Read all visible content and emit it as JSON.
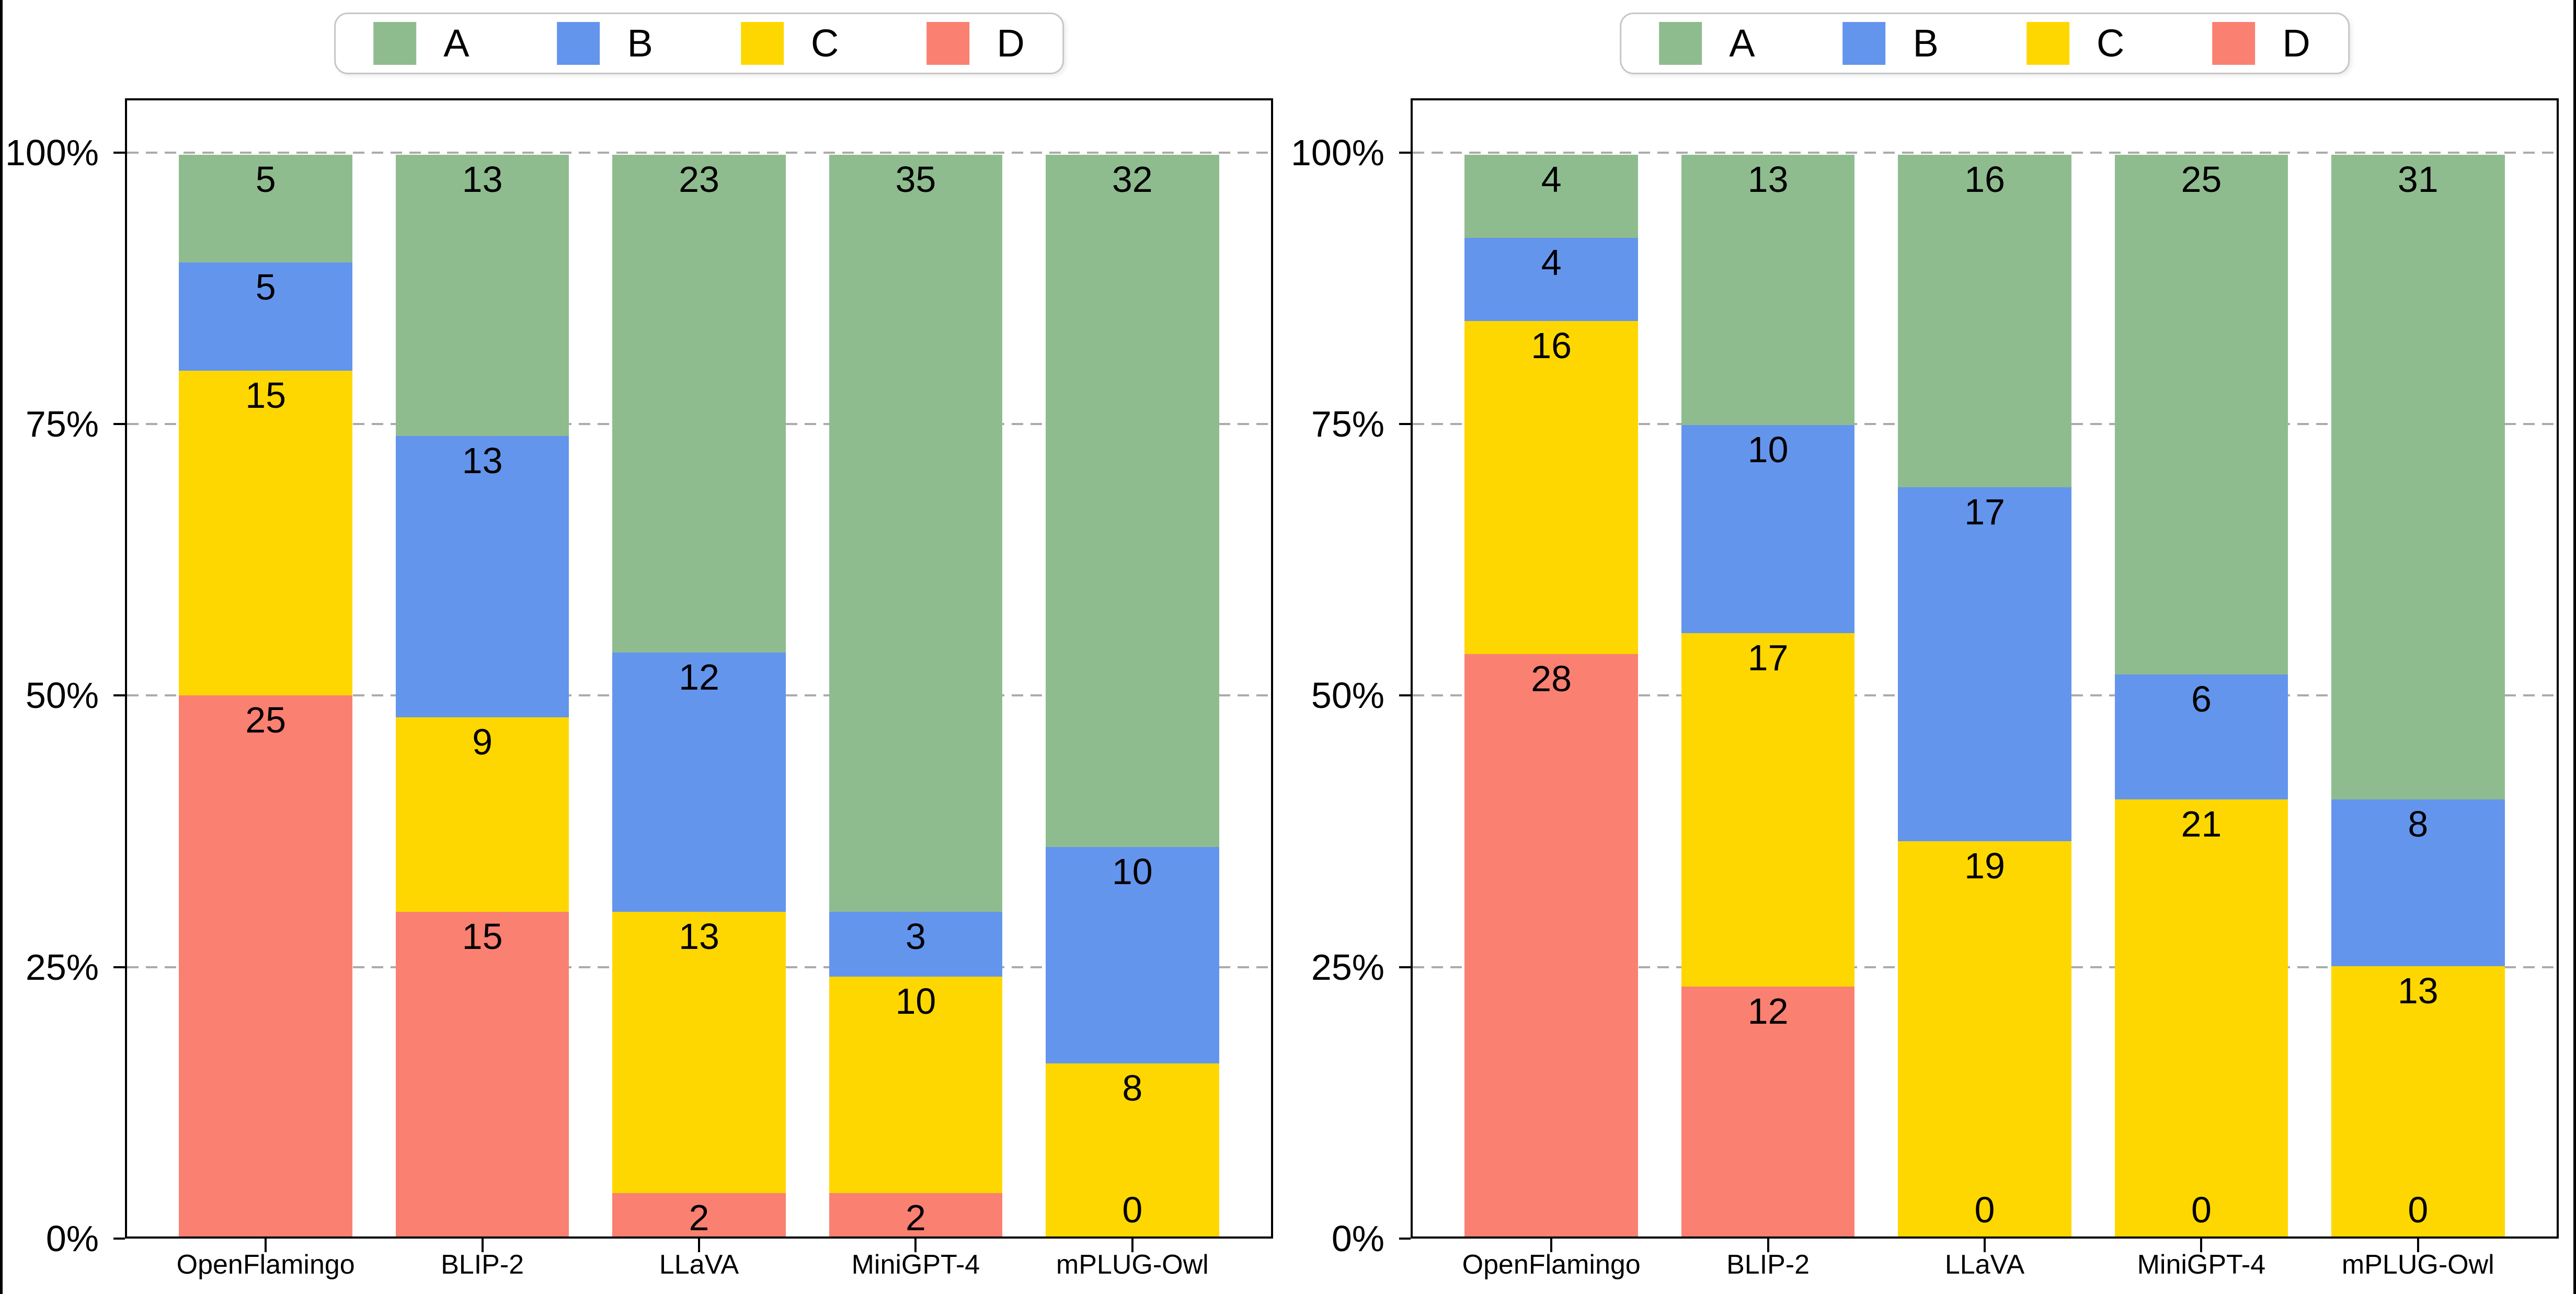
{
  "figure": {
    "background_color": "#ffffff",
    "edge_border_color": "#000000",
    "axis_color": "#000000",
    "gridline_color": "#ababab",
    "legend_border_color": "#c6c6c6",
    "text_color": "#000000"
  },
  "chart_data": [
    {
      "type": "bar",
      "stacked": true,
      "normalized": "each column rendered as percent of its column total",
      "title": "",
      "xlabel": "",
      "ylabel": "",
      "categories": [
        "OpenFlamingo",
        "BLIP-2",
        "LLaVA",
        "MiniGPT-4",
        "mPLUG-Owl"
      ],
      "series": [
        {
          "name": "A",
          "color": "#8fbc8f",
          "values": [
            5,
            13,
            23,
            35,
            32
          ]
        },
        {
          "name": "B",
          "color": "#6495ed",
          "values": [
            5,
            13,
            12,
            3,
            10
          ]
        },
        {
          "name": "C",
          "color": "#ffd700",
          "values": [
            15,
            9,
            13,
            10,
            8
          ]
        },
        {
          "name": "D",
          "color": "#fa8072",
          "values": [
            25,
            15,
            2,
            2,
            0
          ]
        }
      ],
      "stack_order_bottom_to_top": [
        "D",
        "C",
        "B",
        "A"
      ],
      "column_totals": [
        50,
        50,
        50,
        50,
        50
      ],
      "y_tick_labels": [
        "0%",
        "25%",
        "50%",
        "75%",
        "100%"
      ],
      "y_tick_values": [
        0,
        25,
        50,
        75,
        100
      ],
      "ylim": [
        0,
        105
      ],
      "grid": "horizontal dashed at 25/50/75/100",
      "legend_entries": [
        "A",
        "B",
        "C",
        "D"
      ],
      "legend_position": "top-center"
    },
    {
      "type": "bar",
      "stacked": true,
      "normalized": "each column rendered as percent of its column total",
      "title": "",
      "xlabel": "",
      "ylabel": "",
      "categories": [
        "OpenFlamingo",
        "BLIP-2",
        "LLaVA",
        "MiniGPT-4",
        "mPLUG-Owl"
      ],
      "series": [
        {
          "name": "A",
          "color": "#8fbc8f",
          "values": [
            4,
            13,
            16,
            25,
            31
          ]
        },
        {
          "name": "B",
          "color": "#6495ed",
          "values": [
            4,
            10,
            17,
            6,
            8
          ]
        },
        {
          "name": "C",
          "color": "#ffd700",
          "values": [
            16,
            17,
            19,
            21,
            13
          ]
        },
        {
          "name": "D",
          "color": "#fa8072",
          "values": [
            28,
            12,
            0,
            0,
            0
          ]
        }
      ],
      "stack_order_bottom_to_top": [
        "D",
        "C",
        "B",
        "A"
      ],
      "column_totals": [
        52,
        52,
        52,
        52,
        52
      ],
      "y_tick_labels": [
        "0%",
        "25%",
        "50%",
        "75%",
        "100%"
      ],
      "y_tick_values": [
        0,
        25,
        50,
        75,
        100
      ],
      "ylim": [
        0,
        105
      ],
      "grid": "horizontal dashed at 25/50/75/100",
      "legend_entries": [
        "A",
        "B",
        "C",
        "D"
      ],
      "legend_position": "top-center"
    }
  ]
}
